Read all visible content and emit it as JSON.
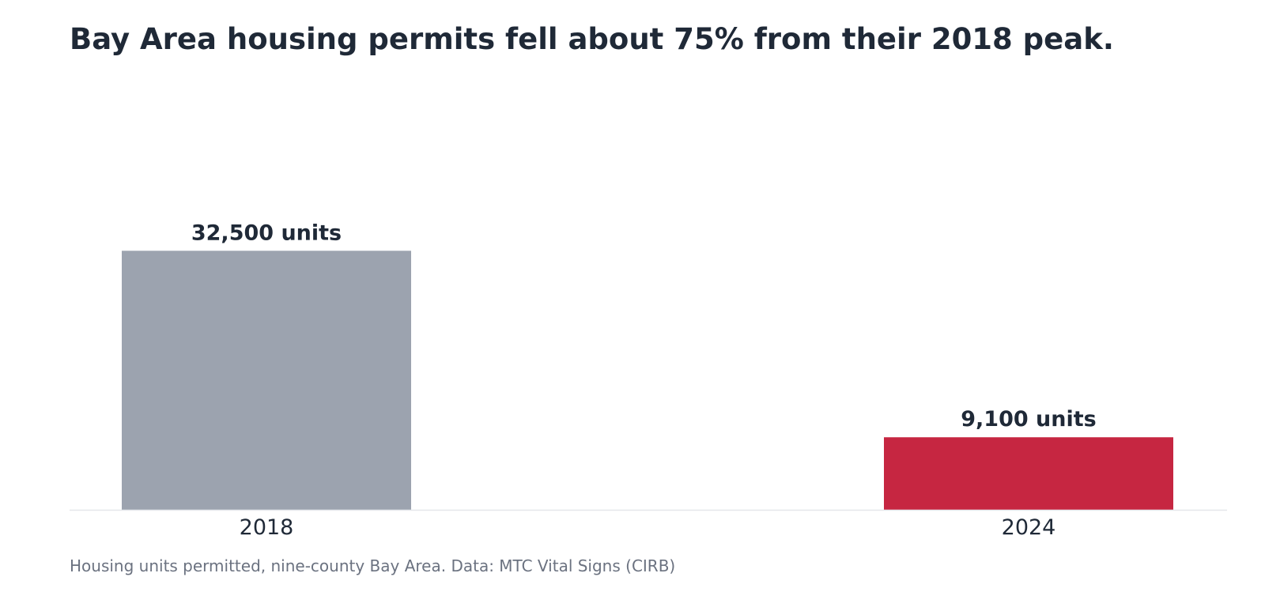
{
  "chart_data": {
    "type": "bar",
    "title": "Bay Area housing permits fell about 75% from their 2018 peak.",
    "caption": "Housing units permitted, nine-county Bay Area. Data: MTC Vital Signs (CIRB)",
    "xlabel": "",
    "ylabel": "",
    "categories": [
      "2018",
      "2024"
    ],
    "values": [
      32500,
      9100
    ],
    "data_labels": [
      "32,500 units",
      "9,100 units"
    ],
    "bar_colors": [
      "#9ca3af",
      "#c62641"
    ],
    "ylim": [
      0,
      60000
    ],
    "grid": false,
    "legend": "none",
    "axis_color": "#e5e7eb"
  }
}
